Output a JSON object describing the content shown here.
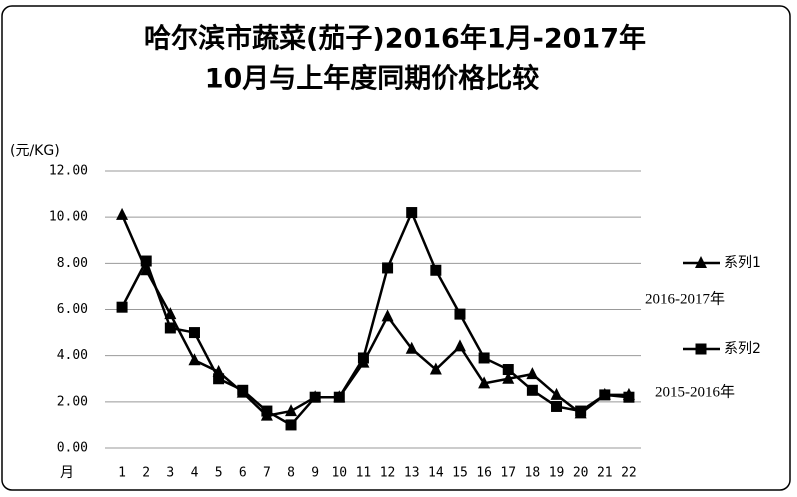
{
  "chart_data": {
    "type": "line",
    "title_lines": [
      "哈尔滨市蔬菜(茄子)2016年1月-2017年",
      "10月与上年度同期价格比较"
    ],
    "y_label": "(元/KG)",
    "x_label": "月",
    "categories": [
      "1",
      "2",
      "3",
      "4",
      "5",
      "6",
      "7",
      "8",
      "9",
      "10",
      "11",
      "12",
      "13",
      "14",
      "15",
      "16",
      "17",
      "18",
      "19",
      "20",
      "21",
      "22"
    ],
    "series": [
      {
        "name": "系列1",
        "marker": "triangle",
        "color": "#000000",
        "values": [
          10.1,
          7.7,
          5.8,
          3.8,
          3.3,
          2.4,
          1.4,
          1.6,
          2.2,
          2.2,
          3.7,
          5.7,
          4.3,
          3.4,
          4.4,
          2.8,
          3.0,
          3.2,
          2.3,
          1.5,
          2.3,
          2.3
        ]
      },
      {
        "name": "系列2",
        "marker": "square",
        "color": "#000000",
        "values": [
          6.1,
          8.1,
          5.2,
          5.0,
          3.0,
          2.5,
          1.6,
          1.0,
          2.2,
          2.2,
          3.9,
          7.8,
          10.2,
          7.7,
          5.8,
          3.9,
          3.4,
          2.5,
          1.8,
          1.6,
          2.3,
          2.2
        ]
      }
    ],
    "annotations": [
      "2016-2017年",
      "2015-2016年"
    ],
    "ylim": [
      0,
      12
    ],
    "yticks": [
      {
        "value": 0,
        "label": "0.00"
      },
      {
        "value": 2,
        "label": "2.00"
      },
      {
        "value": 4,
        "label": "4.00"
      },
      {
        "value": 6,
        "label": "6.00"
      },
      {
        "value": 8,
        "label": "8.00"
      },
      {
        "value": 10,
        "label": "10.00"
      },
      {
        "value": 12,
        "label": "12.00"
      }
    ],
    "grid": true
  }
}
